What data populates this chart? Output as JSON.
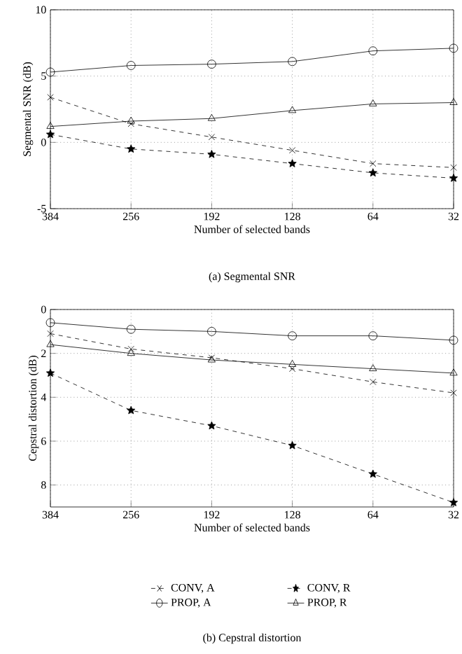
{
  "chart_data": [
    {
      "type": "line",
      "title": "(a)  Segmental SNR",
      "xlabel": "Number of selected bands",
      "ylabel": "Segmental SNR (dB)",
      "categories": [
        "384",
        "256",
        "192",
        "128",
        "64",
        "32"
      ],
      "ylim": [
        -5,
        10
      ],
      "yticks": [
        -5,
        0,
        5,
        10
      ],
      "grid": true,
      "series": [
        {
          "color": "#000000",
          "marker": "cross",
          "line_style": "dashed",
          "values": [
            3.4,
            1.4,
            0.4,
            -0.6,
            -1.6,
            -1.9
          ]
        },
        {
          "color": "#000000",
          "marker": "circle",
          "line_style": "solid",
          "values": [
            5.3,
            5.8,
            5.9,
            6.1,
            6.9,
            7.1
          ]
        },
        {
          "color": "#000000",
          "marker": "star",
          "line_style": "dashed",
          "values": [
            0.6,
            -0.5,
            -0.9,
            -1.6,
            -2.3,
            -2.7
          ]
        },
        {
          "color": "#000000",
          "marker": "triangle",
          "line_style": "solid",
          "values": [
            1.2,
            1.6,
            1.8,
            2.4,
            2.9,
            3.0
          ]
        }
      ]
    },
    {
      "type": "line",
      "title": "(b)  Cepstral distortion",
      "xlabel": "Number of selected bands",
      "ylabel": "Cepstral distortion (dB)",
      "categories": [
        "384",
        "256",
        "192",
        "128",
        "64",
        "32"
      ],
      "ylim": [
        9,
        0
      ],
      "yticks": [
        0,
        2,
        4,
        6,
        8
      ],
      "grid": true,
      "legend": "bottom",
      "series": [
        {
          "name": "CONV, A",
          "color": "#000000",
          "marker": "cross",
          "line_style": "dashed",
          "values": [
            1.1,
            1.8,
            2.2,
            2.7,
            3.3,
            3.8
          ]
        },
        {
          "name": "PROP, A",
          "color": "#000000",
          "marker": "circle",
          "line_style": "solid",
          "values": [
            0.6,
            0.9,
            1.0,
            1.2,
            1.2,
            1.4
          ]
        },
        {
          "name": "CONV, R",
          "color": "#000000",
          "marker": "star",
          "line_style": "dashed",
          "values": [
            2.9,
            4.6,
            5.3,
            6.2,
            7.5,
            8.8
          ]
        },
        {
          "name": "PROP, R",
          "color": "#000000",
          "marker": "triangle",
          "line_style": "solid",
          "values": [
            1.6,
            2.0,
            2.3,
            2.5,
            2.7,
            2.9
          ]
        }
      ]
    }
  ]
}
